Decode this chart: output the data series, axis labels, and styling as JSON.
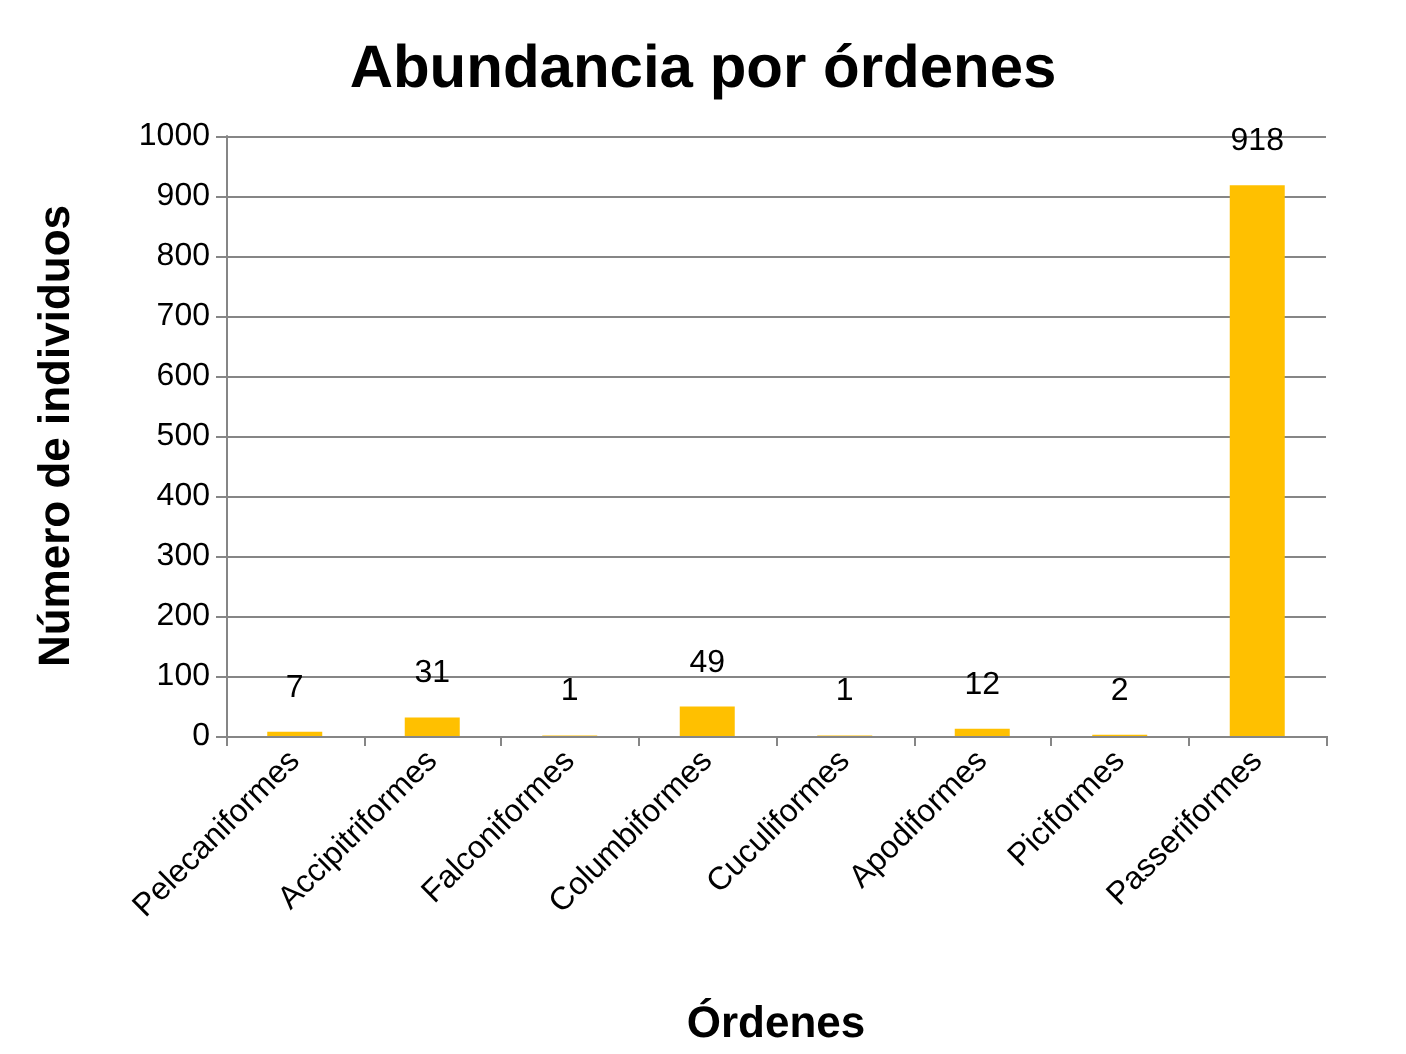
{
  "chart_data": {
    "type": "bar",
    "title": "Abundancia por órdenes",
    "xlabel": "Órdenes",
    "ylabel": "Número de individuos",
    "categories": [
      "Pelecaniformes",
      "Accipitriformes",
      "Falconiformes",
      "Columbiformes",
      "Cuculiformes",
      "Apodiformes",
      "Piciformes",
      "Passeriformes"
    ],
    "values": [
      7,
      31,
      1,
      49,
      1,
      12,
      2,
      918
    ],
    "color": "#ffc000",
    "ylim": [
      0,
      1000
    ],
    "yticks": [
      0,
      100,
      200,
      300,
      400,
      500,
      600,
      700,
      800,
      900,
      1000
    ],
    "grid": "y",
    "data_labels": true
  }
}
